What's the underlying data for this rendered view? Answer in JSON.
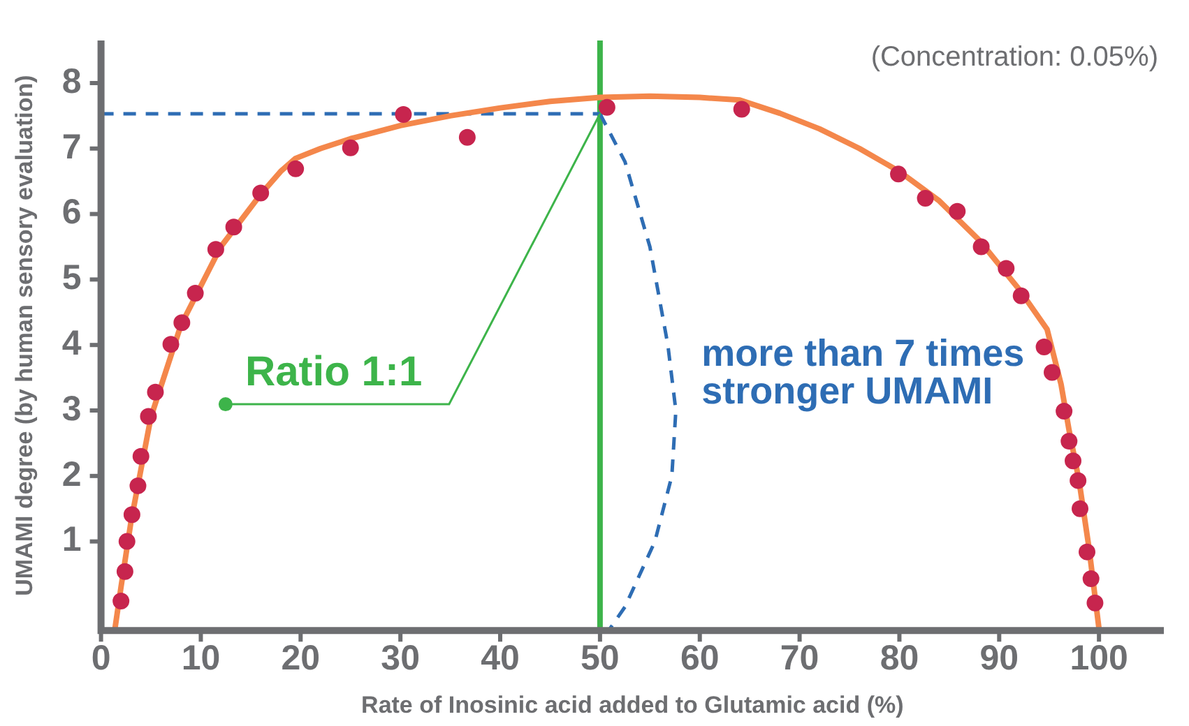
{
  "chart_data": {
    "type": "scatter",
    "xlabel": "Rate of Inosinic acid added to Glutamic acid (%)",
    "ylabel": "UMAMI degree (by human sensory evaluation)",
    "xlim": [
      0,
      106.5
    ],
    "ylim": [
      -0.36,
      8.65
    ],
    "xticks": [
      0,
      10,
      20,
      30,
      40,
      50,
      60,
      70,
      80,
      90,
      100
    ],
    "yticks": [
      1,
      2,
      3,
      4,
      5,
      6,
      7,
      8
    ],
    "grid": false,
    "legend": false,
    "series": [
      {
        "type": "line",
        "color": "#f4874b",
        "marker": "none",
        "line_style": "solid",
        "x": [
          1.4,
          2,
          3,
          4,
          5,
          6.5,
          8,
          10,
          12,
          14,
          16,
          18,
          19.5,
          22,
          25,
          30,
          35,
          40,
          45,
          50,
          55,
          60,
          64,
          68,
          72,
          76,
          80,
          84,
          88,
          92,
          94.8,
          96.2,
          97,
          98,
          99,
          100
        ],
        "values": [
          -0.33,
          0.3,
          1.3,
          2.1,
          2.9,
          3.6,
          4.3,
          4.9,
          5.5,
          5.9,
          6.3,
          6.65,
          6.85,
          7.0,
          7.15,
          7.35,
          7.5,
          7.62,
          7.72,
          7.78,
          7.8,
          7.78,
          7.74,
          7.54,
          7.3,
          7.0,
          6.65,
          6.2,
          5.6,
          4.85,
          4.24,
          3.4,
          2.7,
          1.93,
          0.9,
          -0.33
        ]
      },
      {
        "color": "#c7254e",
        "marker": "circle",
        "x": [
          2.0,
          2.4,
          2.6,
          3.1,
          3.7,
          4.0,
          4.75,
          5.45,
          7.0,
          8.1,
          9.45,
          11.5,
          13.3,
          16.0,
          19.5,
          25.0,
          30.3,
          36.7,
          50.7,
          64.2,
          79.9,
          82.6,
          85.8,
          88.2,
          90.7,
          92.2,
          94.5,
          95.3,
          96.5,
          97.0,
          97.4,
          97.9,
          98.1,
          98.8,
          99.2,
          99.6
        ],
        "values": [
          0.09,
          0.54,
          1.0,
          1.41,
          1.85,
          2.3,
          2.91,
          3.28,
          4.01,
          4.34,
          4.79,
          5.46,
          5.8,
          6.32,
          6.69,
          7.01,
          7.52,
          7.17,
          7.63,
          7.6,
          6.61,
          6.24,
          6.04,
          5.5,
          5.17,
          4.75,
          3.97,
          3.58,
          2.99,
          2.53,
          2.23,
          1.93,
          1.5,
          0.84,
          0.43,
          0.06
        ]
      },
      {
        "type": "line",
        "color": "#2e6db4",
        "marker": "none",
        "line_style": "dashed",
        "x": [
          0,
          50
        ],
        "values": [
          7.53,
          7.53
        ]
      },
      {
        "type": "line",
        "color": "#2e6db4",
        "marker": "none",
        "line_style": "dashed",
        "x": [
          50,
          52.5,
          55,
          56.8,
          57.6,
          57.2,
          55.5,
          52.5,
          51
        ],
        "values": [
          7.53,
          6.8,
          5.5,
          4.0,
          3.0,
          2.0,
          1.0,
          0.0,
          -0.33
        ]
      }
    ],
    "ref_lines": [
      {
        "axis": "x",
        "value": 50,
        "color": "#3db44a",
        "line_style": "solid"
      }
    ],
    "annotations": [
      {
        "text": "Ratio 1:1",
        "x": 50,
        "y": 7.53
      },
      "(Concentration: 0.05%)",
      "more than 7 times stronger UMAMI"
    ]
  }
}
